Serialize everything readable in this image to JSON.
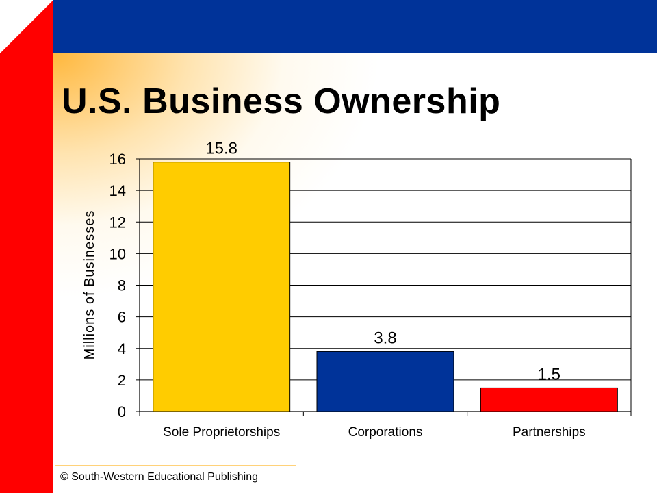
{
  "slide": {
    "title": "U.S. Business Ownership",
    "footer": "© South-Western Educational Publishing",
    "colors": {
      "left_band": "#ff0000",
      "top_band": "#003399",
      "glow": "#ffb028"
    }
  },
  "chart_data": {
    "type": "bar",
    "title": "",
    "xlabel": "",
    "ylabel": "Millions of Businesses",
    "categories": [
      "Sole Proprietorships",
      "Corporations",
      "Partnerships"
    ],
    "values": [
      15.8,
      3.8,
      1.5
    ],
    "value_labels": [
      "15.8",
      "3.8",
      "1.5"
    ],
    "colors": [
      "#ffcc00",
      "#003399",
      "#ff0000"
    ],
    "ylim": [
      0,
      16
    ],
    "yticks": [
      0,
      2,
      4,
      6,
      8,
      10,
      12,
      14,
      16
    ],
    "grid": true,
    "legend": "none"
  }
}
